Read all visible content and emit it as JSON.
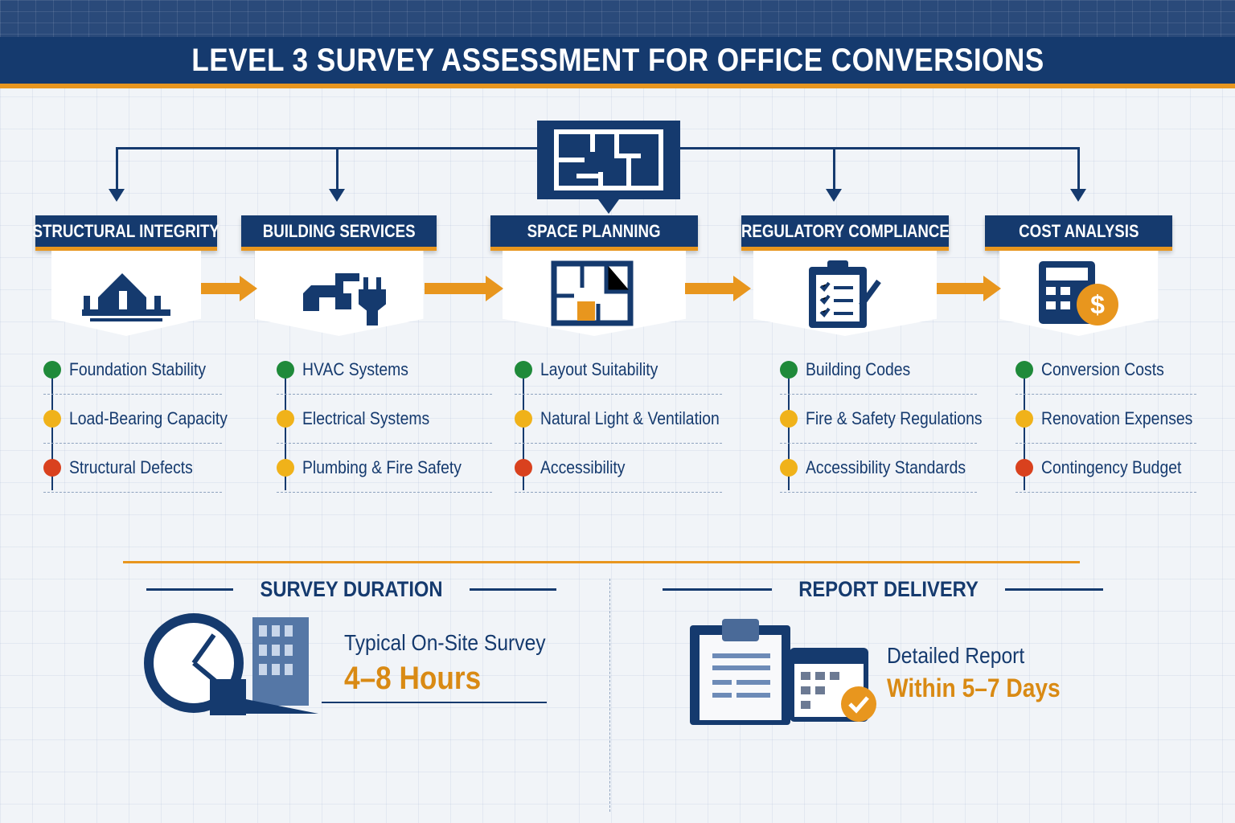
{
  "title": "LEVEL 3 SURVEY ASSESSMENT FOR OFFICE CONVERSIONS",
  "colors": {
    "navy": "#153a6e",
    "orange": "#e8961e",
    "green": "#1f8a3a",
    "yellow": "#f0b21a",
    "red": "#d9411e"
  },
  "top_icon": "floor-plan-icon",
  "categories": [
    {
      "label": "STRUCTURAL INTEGRITY",
      "icon": "building-foundation-icon",
      "items": [
        {
          "text": "Foundation Stability",
          "status": "green"
        },
        {
          "text": "Load-Bearing Capacity",
          "status": "yellow"
        },
        {
          "text": "Structural Defects",
          "status": "red"
        }
      ]
    },
    {
      "label": "BUILDING SERVICES",
      "icon": "faucet-plug-icon",
      "items": [
        {
          "text": "HVAC Systems",
          "status": "green"
        },
        {
          "text": "Electrical Systems",
          "status": "yellow"
        },
        {
          "text": "Plumbing & Fire Safety",
          "status": "yellow"
        }
      ]
    },
    {
      "label": "SPACE PLANNING",
      "icon": "floor-plan-icon",
      "items": [
        {
          "text": "Layout Suitability",
          "status": "green"
        },
        {
          "text": "Natural Light & Ventilation",
          "status": "yellow"
        },
        {
          "text": "Accessibility",
          "status": "red"
        }
      ]
    },
    {
      "label": "REGULATORY COMPLIANCE",
      "icon": "clipboard-checklist-icon",
      "items": [
        {
          "text": "Building Codes",
          "status": "green"
        },
        {
          "text": "Fire & Safety Regulations",
          "status": "yellow"
        },
        {
          "text": "Accessibility Standards",
          "status": "yellow"
        }
      ]
    },
    {
      "label": "COST ANALYSIS",
      "icon": "calculator-dollar-icon",
      "items": [
        {
          "text": "Conversion Costs",
          "status": "green"
        },
        {
          "text": "Renovation Expenses",
          "status": "yellow"
        },
        {
          "text": "Contingency Budget",
          "status": "red"
        }
      ]
    }
  ],
  "survey_duration": {
    "heading": "SURVEY DURATION",
    "label": "Typical On-Site Survey",
    "value": "4–8 Hours",
    "icon": "clock-building-icon"
  },
  "report_delivery": {
    "heading": "REPORT DELIVERY",
    "label": "Detailed Report",
    "value": "Within 5–7 Days",
    "icon": "clipboard-calendar-check-icon"
  }
}
